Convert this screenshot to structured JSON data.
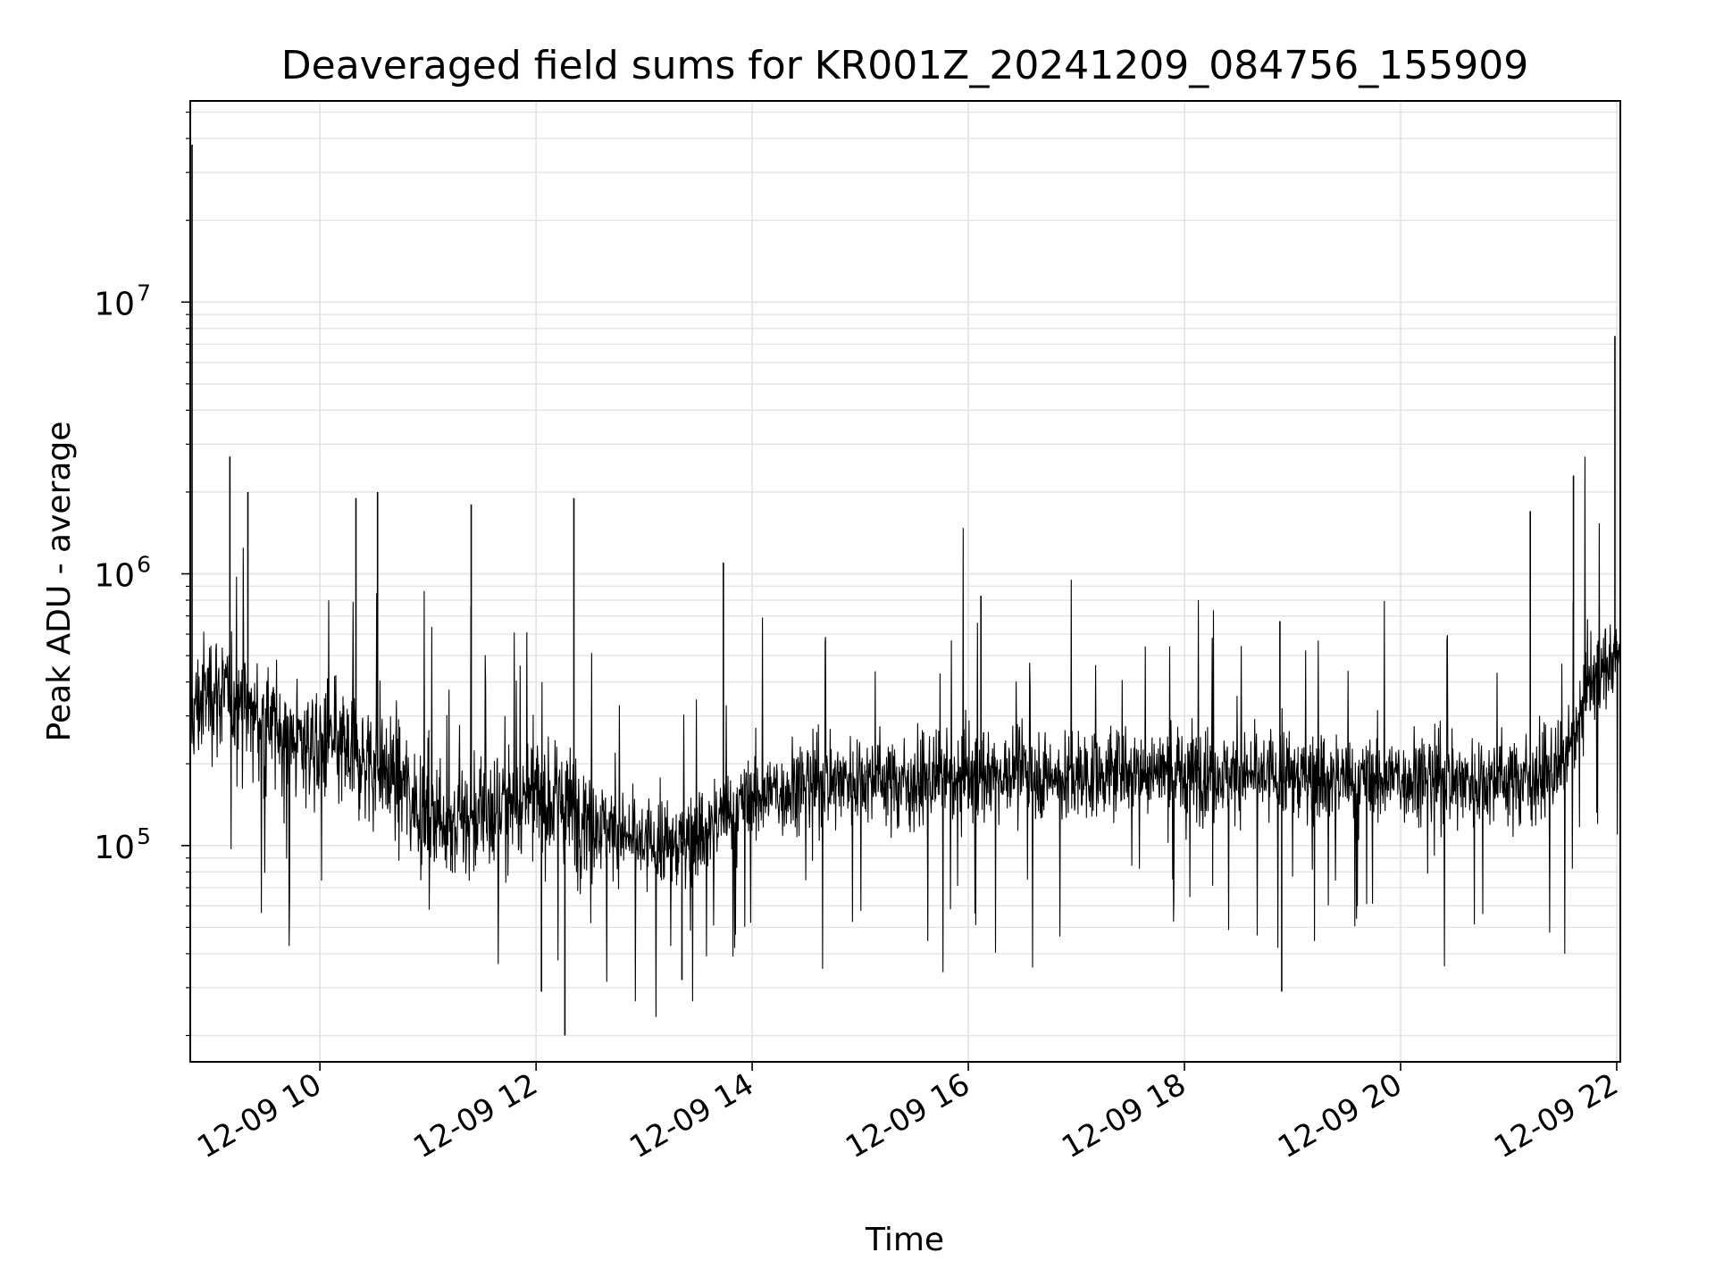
{
  "chart_data": {
    "type": "line",
    "title": "Deaveraged field sums for KR001Z_20241209_084756_155909",
    "xlabel": "Time",
    "ylabel": "Peak ADU - average",
    "yscale": "log",
    "ylim": [
      16000,
      55000000
    ],
    "xlim": [
      "2024-12-09 08:48",
      "2024-12-09 22:02"
    ],
    "x_ticks": [
      "12-09 10",
      "12-09 12",
      "12-09 14",
      "12-09 16",
      "12-09 18",
      "12-09 20",
      "12-09 22"
    ],
    "x_tick_times": [
      "2024-12-09 10:00",
      "2024-12-09 12:00",
      "2024-12-09 14:00",
      "2024-12-09 16:00",
      "2024-12-09 18:00",
      "2024-12-09 20:00",
      "2024-12-09 22:00"
    ],
    "y_ticks": [
      {
        "base": "10",
        "exp": "5"
      },
      {
        "base": "10",
        "exp": "6"
      },
      {
        "base": "10",
        "exp": "7"
      }
    ],
    "y_tick_values": [
      100000,
      1000000,
      10000000
    ],
    "grid": true,
    "line_color": "#000000",
    "series": [
      {
        "x": [
          "2024-12-09 08:48",
          "2024-12-09 09:00",
          "2024-12-09 09:15",
          "2024-12-09 09:30",
          "2024-12-09 09:45",
          "2024-12-09 10:00",
          "2024-12-09 10:15",
          "2024-12-09 10:30",
          "2024-12-09 10:45",
          "2024-12-09 11:00",
          "2024-12-09 11:15",
          "2024-12-09 11:30",
          "2024-12-09 11:45",
          "2024-12-09 12:00",
          "2024-12-09 12:15",
          "2024-12-09 12:30",
          "2024-12-09 12:45",
          "2024-12-09 13:00",
          "2024-12-09 13:15",
          "2024-12-09 13:30",
          "2024-12-09 13:45",
          "2024-12-09 14:00",
          "2024-12-09 14:15",
          "2024-12-09 14:30",
          "2024-12-09 14:45",
          "2024-12-09 15:00",
          "2024-12-09 15:15",
          "2024-12-09 15:30",
          "2024-12-09 15:45",
          "2024-12-09 16:00",
          "2024-12-09 16:15",
          "2024-12-09 16:30",
          "2024-12-09 16:45",
          "2024-12-09 17:00",
          "2024-12-09 17:15",
          "2024-12-09 17:30",
          "2024-12-09 17:45",
          "2024-12-09 18:00",
          "2024-12-09 18:15",
          "2024-12-09 18:30",
          "2024-12-09 18:45",
          "2024-12-09 19:00",
          "2024-12-09 19:15",
          "2024-12-09 19:30",
          "2024-12-09 19:45",
          "2024-12-09 20:00",
          "2024-12-09 20:15",
          "2024-12-09 20:30",
          "2024-12-09 20:45",
          "2024-12-09 21:00",
          "2024-12-09 21:15",
          "2024-12-09 21:30",
          "2024-12-09 21:45",
          "2024-12-09 22:00"
        ],
        "y": [
          300000,
          380000,
          330000,
          280000,
          250000,
          230000,
          220000,
          200000,
          170000,
          130000,
          120000,
          130000,
          140000,
          150000,
          140000,
          130000,
          110000,
          100000,
          100000,
          110000,
          130000,
          150000,
          160000,
          170000,
          175000,
          180000,
          175000,
          170000,
          175000,
          180000,
          185000,
          185000,
          180000,
          180000,
          185000,
          190000,
          190000,
          185000,
          185000,
          180000,
          180000,
          180000,
          180000,
          175000,
          175000,
          180000,
          180000,
          175000,
          175000,
          175000,
          180000,
          190000,
          400000,
          500000
        ]
      }
    ],
    "spikes_up": [
      {
        "x": "2024-12-09 08:49",
        "y": 38000000
      },
      {
        "x": "2024-12-09 09:10",
        "y": 2700000
      },
      {
        "x": "2024-12-09 09:20",
        "y": 2000000
      },
      {
        "x": "2024-12-09 10:20",
        "y": 1900000
      },
      {
        "x": "2024-12-09 10:32",
        "y": 2000000
      },
      {
        "x": "2024-12-09 11:24",
        "y": 1800000
      },
      {
        "x": "2024-12-09 12:21",
        "y": 1900000
      },
      {
        "x": "2024-12-09 13:44",
        "y": 1100000
      },
      {
        "x": "2024-12-09 16:07",
        "y": 830000
      },
      {
        "x": "2024-12-09 18:53",
        "y": 670000
      },
      {
        "x": "2024-12-09 21:12",
        "y": 1700000
      },
      {
        "x": "2024-12-09 21:36",
        "y": 2300000
      },
      {
        "x": "2024-12-09 21:59",
        "y": 7500000
      }
    ],
    "spikes_down": [
      {
        "x": "2024-12-09 12:16",
        "y": 20000
      },
      {
        "x": "2024-12-09 12:03",
        "y": 29000
      },
      {
        "x": "2024-12-09 18:54",
        "y": 29000
      },
      {
        "x": "2024-12-09 13:21",
        "y": 32000
      }
    ]
  }
}
